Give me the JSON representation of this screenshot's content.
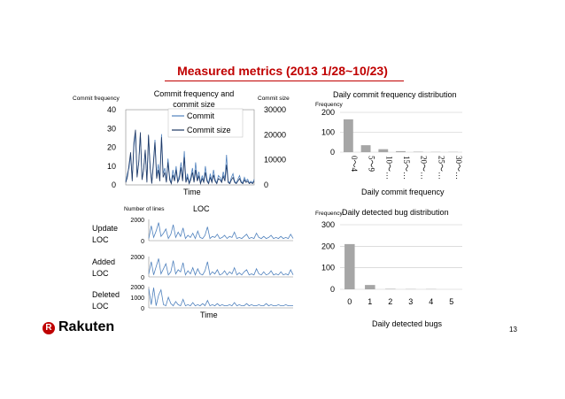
{
  "slide": {
    "title": "Measured metrics (2013 1/28~10/23)",
    "logo_mark": "R",
    "logo_text": "Rakuten",
    "page_number": "13",
    "brand_color": "#bf0000",
    "series_color": "#4f81bd",
    "dark_series_color": "#1f3864"
  },
  "chart_data": [
    {
      "type": "line",
      "title": "Commit frequency and commit size",
      "xlabel": "Time",
      "ylabel_left": "Commit frequency",
      "ylabel_right": "Commit size",
      "yticks_left": [
        "0",
        "10",
        "20",
        "30",
        "40"
      ],
      "yticks_right": [
        "0",
        "10000",
        "20000",
        "30000"
      ],
      "ylim_left": [
        0,
        40
      ],
      "ylim_right": [
        0,
        30000
      ],
      "legend_position": "top-center",
      "series": [
        {
          "name": "Commit",
          "axis": "left",
          "values": [
            2,
            6,
            9,
            16,
            3,
            20,
            28,
            5,
            12,
            27,
            3,
            8,
            18,
            2,
            26,
            10,
            1,
            12,
            24,
            4,
            11,
            3,
            27,
            6,
            9,
            2,
            14,
            4,
            1,
            8,
            3,
            10,
            2,
            5,
            12,
            3,
            18,
            2,
            6,
            1,
            4,
            9,
            2,
            12,
            3,
            7,
            1,
            5,
            2,
            10,
            3,
            1,
            6,
            2,
            8,
            3,
            1,
            5,
            4,
            2,
            7,
            3,
            16,
            2,
            1,
            4,
            6,
            2,
            1,
            3,
            5,
            2,
            1,
            4,
            2,
            3,
            1,
            2,
            1,
            3
          ]
        },
        {
          "name": "Commit size",
          "axis": "right",
          "values": [
            1000,
            3000,
            8000,
            13000,
            1500,
            17000,
            22000,
            3000,
            9000,
            21000,
            2000,
            6000,
            14000,
            1000,
            20000,
            7000,
            500,
            8000,
            17000,
            2500,
            6000,
            1500,
            19000,
            3000,
            5000,
            1000,
            9000,
            2000,
            500,
            4000,
            1500,
            6000,
            1000,
            2500,
            7000,
            1500,
            11000,
            1000,
            3000,
            500,
            2000,
            5000,
            1000,
            6000,
            1500,
            3500,
            500,
            2500,
            1000,
            5000,
            1500,
            500,
            3000,
            1000,
            4000,
            1500,
            500,
            2500,
            2000,
            1000,
            3500,
            1500,
            8000,
            1000,
            500,
            2000,
            3000,
            1000,
            500,
            1500,
            2500,
            1000,
            500,
            2000,
            1000,
            1500,
            500,
            1000,
            500,
            1500
          ]
        }
      ]
    },
    {
      "type": "bar",
      "title": "Daily commit frequency distribution",
      "ylabel": "Frequency",
      "xlabel": "Daily commit frequency",
      "categories": [
        "0～4",
        "5～9",
        "10～…",
        "15～…",
        "20～…",
        "25～…",
        "30～…"
      ],
      "values": [
        165,
        35,
        15,
        5,
        2,
        1,
        1
      ],
      "yticks": [
        "0",
        "100",
        "200"
      ],
      "ylim": [
        0,
        200
      ],
      "grid": true
    },
    {
      "type": "line",
      "title": "LOC",
      "ylabel": "Number of lines",
      "xlabel": "Time",
      "panels": [
        {
          "name": "Update LOC",
          "label_lines": [
            "Update",
            "LOC"
          ],
          "yticks": [
            "0",
            "2000"
          ],
          "ylim": [
            0,
            2000
          ],
          "values": [
            200,
            1400,
            300,
            900,
            1700,
            400,
            700,
            1100,
            200,
            600,
            1500,
            300,
            800,
            400,
            1200,
            200,
            500,
            300,
            700,
            200,
            900,
            300,
            200,
            500,
            1300,
            200,
            400,
            300,
            600,
            200,
            300,
            500,
            200,
            400,
            300,
            800,
            200,
            300,
            200,
            400,
            600,
            200,
            300,
            200,
            700,
            300,
            200,
            400,
            200,
            300,
            500,
            200,
            300,
            200,
            400,
            200,
            300,
            200,
            600,
            200
          ]
        },
        {
          "name": "Added LOC",
          "label_lines": [
            "Added",
            "LOC"
          ],
          "yticks": [
            "0",
            "2000"
          ],
          "ylim": [
            0,
            2000
          ],
          "values": [
            300,
            1500,
            200,
            1000,
            1800,
            300,
            800,
            1300,
            200,
            500,
            1600,
            300,
            700,
            500,
            1400,
            200,
            600,
            300,
            900,
            200,
            800,
            300,
            200,
            600,
            1500,
            200,
            500,
            300,
            700,
            200,
            300,
            600,
            200,
            500,
            300,
            900,
            200,
            400,
            200,
            500,
            700,
            200,
            300,
            200,
            800,
            300,
            200,
            500,
            200,
            300,
            600,
            200,
            300,
            200,
            500,
            200,
            300,
            200,
            700,
            200
          ]
        },
        {
          "name": "Deleted LOC",
          "label_lines": [
            "Deleted",
            "LOC"
          ],
          "yticks": [
            "0",
            "1000",
            "2000"
          ],
          "ylim": [
            0,
            2000
          ],
          "values": [
            1800,
            300,
            1900,
            200,
            1200,
            1700,
            300,
            200,
            1000,
            400,
            200,
            600,
            300,
            200,
            800,
            200,
            300,
            200,
            500,
            200,
            300,
            200,
            400,
            200,
            700,
            200,
            300,
            200,
            400,
            200,
            300,
            200,
            200,
            300,
            200,
            500,
            200,
            300,
            200,
            200,
            400,
            200,
            300,
            200,
            200,
            300,
            200,
            200,
            400,
            200,
            300,
            200,
            200,
            300,
            200,
            200,
            300,
            200,
            200,
            200
          ]
        }
      ]
    },
    {
      "type": "bar",
      "title": "Daily detected bug distribution",
      "ylabel": "Frequency",
      "xlabel": "Daily detected bugs",
      "categories": [
        "0",
        "1",
        "2",
        "3",
        "4",
        "5"
      ],
      "values": [
        210,
        20,
        2,
        1,
        1,
        0
      ],
      "yticks": [
        "0",
        "100",
        "200",
        "300"
      ],
      "ylim": [
        0,
        300
      ],
      "grid": true
    }
  ]
}
